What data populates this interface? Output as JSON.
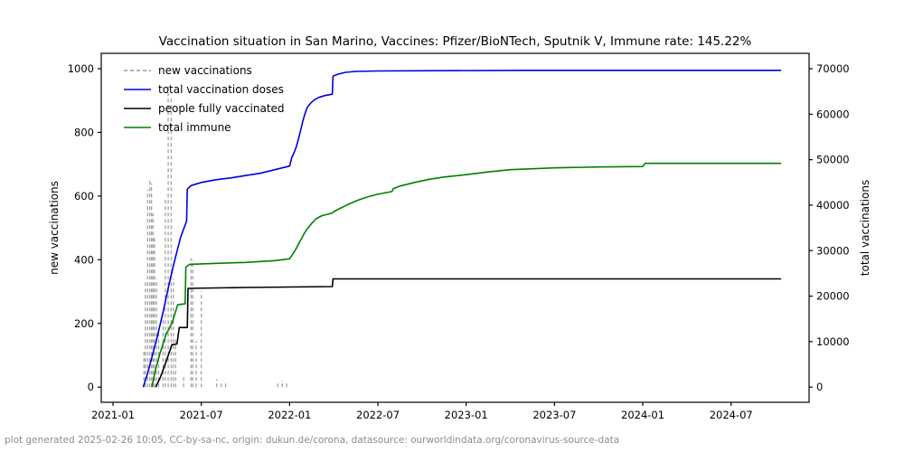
{
  "title": "Vaccination situation in San Marino, Vaccines: Pfizer/BioNTech, Sputnik V, Immune rate: 145.22%",
  "footer": "plot generated 2025-02-26 10:05, CC-by-sa-nc, origin: dukun.de/corona, datasource: ourworldindata.org/coronavirus-source-data",
  "chart_data": {
    "type": "line",
    "title": "Vaccination situation in San Marino, Vaccines: Pfizer/BioNTech, Sputnik V, Immune rate: 145.22%",
    "x_axis": {
      "label": "",
      "unit": "months since 2021-01",
      "lim": [
        -0.8,
        47.3
      ],
      "tick_labels": [
        "2021-01",
        "2021-07",
        "2022-01",
        "2022-07",
        "2023-01",
        "2023-07",
        "2024-01",
        "2024-07"
      ],
      "tick_offsets": [
        0,
        6,
        12,
        18,
        24,
        30,
        36,
        42
      ]
    },
    "y_left": {
      "label": "new vaccinations",
      "lim": [
        -47.7,
        1048.3
      ],
      "ticks": [
        0,
        200,
        400,
        600,
        800,
        1000
      ]
    },
    "y_right": {
      "label": "total vaccinations",
      "lim": [
        -3339,
        73381
      ],
      "ticks": [
        0,
        10000,
        20000,
        30000,
        40000,
        50000,
        60000,
        70000
      ]
    },
    "legend": {
      "position": "upper-left",
      "entries": [
        {
          "label": "new vaccinations",
          "color": "#999999",
          "dash": true
        },
        {
          "label": "total vaccination doses",
          "color": "#0000dd",
          "dash": false
        },
        {
          "label": "people fully vaccinated",
          "color": "#000000",
          "dash": false
        },
        {
          "label": "total immune",
          "color": "#008000",
          "dash": false
        }
      ]
    },
    "series": [
      {
        "name": "new vaccinations",
        "axis": "left",
        "color": "#999999",
        "style": "dashed-impulse",
        "points": [
          [
            2.1,
            120
          ],
          [
            2.2,
            330
          ],
          [
            2.35,
            620
          ],
          [
            2.5,
            655
          ],
          [
            2.62,
            640
          ],
          [
            2.72,
            545
          ],
          [
            2.82,
            470
          ],
          [
            2.95,
            340
          ],
          [
            3.1,
            180
          ],
          [
            3.4,
            210
          ],
          [
            3.55,
            590
          ],
          [
            3.75,
            950
          ],
          [
            3.95,
            910
          ],
          [
            4.1,
            340
          ],
          [
            4.25,
            150
          ],
          [
            4.8,
            40
          ],
          [
            5.3,
            405
          ],
          [
            5.42,
            400
          ],
          [
            5.65,
            145
          ],
          [
            6.0,
            300
          ],
          [
            7.05,
            25
          ],
          [
            7.35,
            20
          ],
          [
            7.65,
            18
          ],
          [
            11.2,
            15
          ],
          [
            11.5,
            22
          ],
          [
            11.8,
            12
          ]
        ]
      },
      {
        "name": "total vaccination doses",
        "axis": "right",
        "color": "#0000dd",
        "style": "line",
        "points": [
          [
            2.05,
            0
          ],
          [
            2.3,
            2500
          ],
          [
            2.6,
            6000
          ],
          [
            3.0,
            11000
          ],
          [
            3.4,
            16500
          ],
          [
            3.8,
            22500
          ],
          [
            4.2,
            28000
          ],
          [
            4.6,
            33000
          ],
          [
            5.0,
            36500
          ],
          [
            5.05,
            43500
          ],
          [
            5.3,
            44300
          ],
          [
            6,
            45000
          ],
          [
            7,
            45600
          ],
          [
            8,
            46000
          ],
          [
            9,
            46500
          ],
          [
            10,
            47000
          ],
          [
            11,
            47800
          ],
          [
            12,
            48600
          ],
          [
            12.15,
            50500
          ],
          [
            12.3,
            51500
          ],
          [
            12.45,
            52800
          ],
          [
            12.6,
            54500
          ],
          [
            12.75,
            56500
          ],
          [
            12.9,
            58500
          ],
          [
            13.05,
            60200
          ],
          [
            13.2,
            61500
          ],
          [
            13.45,
            62500
          ],
          [
            13.7,
            63200
          ],
          [
            14.0,
            63700
          ],
          [
            14.4,
            64100
          ],
          [
            14.9,
            64400
          ],
          [
            14.95,
            68400
          ],
          [
            15.3,
            68800
          ],
          [
            15.8,
            69200
          ],
          [
            16.5,
            69400
          ],
          [
            18,
            69500
          ],
          [
            28,
            69650
          ],
          [
            45.4,
            69650
          ]
        ]
      },
      {
        "name": "people fully vaccinated",
        "axis": "right",
        "color": "#000000",
        "style": "line",
        "points": [
          [
            2.9,
            0
          ],
          [
            3.2,
            2000
          ],
          [
            3.6,
            5500
          ],
          [
            4.0,
            9300
          ],
          [
            4.35,
            9500
          ],
          [
            4.5,
            13100
          ],
          [
            5.05,
            13100
          ],
          [
            5.1,
            21700
          ],
          [
            9,
            21900
          ],
          [
            12,
            22000
          ],
          [
            14.9,
            22100
          ],
          [
            14.95,
            23800
          ],
          [
            45.4,
            23800
          ]
        ]
      },
      {
        "name": "total immune",
        "axis": "right",
        "color": "#008000",
        "style": "line",
        "points": [
          [
            2.64,
            0
          ],
          [
            2.9,
            4000
          ],
          [
            3.2,
            7500
          ],
          [
            3.6,
            11500
          ],
          [
            4.0,
            14000
          ],
          [
            4.4,
            18100
          ],
          [
            4.9,
            18300
          ],
          [
            4.95,
            26400
          ],
          [
            5.2,
            27000
          ],
          [
            7,
            27200
          ],
          [
            9,
            27400
          ],
          [
            11,
            27800
          ],
          [
            12,
            28200
          ],
          [
            12.2,
            29200
          ],
          [
            12.4,
            30200
          ],
          [
            12.6,
            31400
          ],
          [
            12.8,
            32600
          ],
          [
            13.0,
            33800
          ],
          [
            13.2,
            34800
          ],
          [
            13.5,
            36000
          ],
          [
            13.8,
            37000
          ],
          [
            14.2,
            37700
          ],
          [
            14.6,
            38000
          ],
          [
            14.92,
            38300
          ],
          [
            15.0,
            38600
          ],
          [
            15.5,
            39400
          ],
          [
            16.0,
            40200
          ],
          [
            16.5,
            40900
          ],
          [
            17.0,
            41500
          ],
          [
            17.5,
            42000
          ],
          [
            18.0,
            42400
          ],
          [
            18.95,
            43000
          ],
          [
            19.05,
            43600
          ],
          [
            19.5,
            44200
          ],
          [
            20.5,
            45000
          ],
          [
            21.5,
            45700
          ],
          [
            22.5,
            46200
          ],
          [
            24.0,
            46700
          ],
          [
            25.5,
            47300
          ],
          [
            27.0,
            47800
          ],
          [
            28.5,
            48000
          ],
          [
            30.0,
            48200
          ],
          [
            33.0,
            48400
          ],
          [
            36.0,
            48500
          ],
          [
            36.15,
            49200
          ],
          [
            45.4,
            49200
          ]
        ]
      }
    ]
  }
}
